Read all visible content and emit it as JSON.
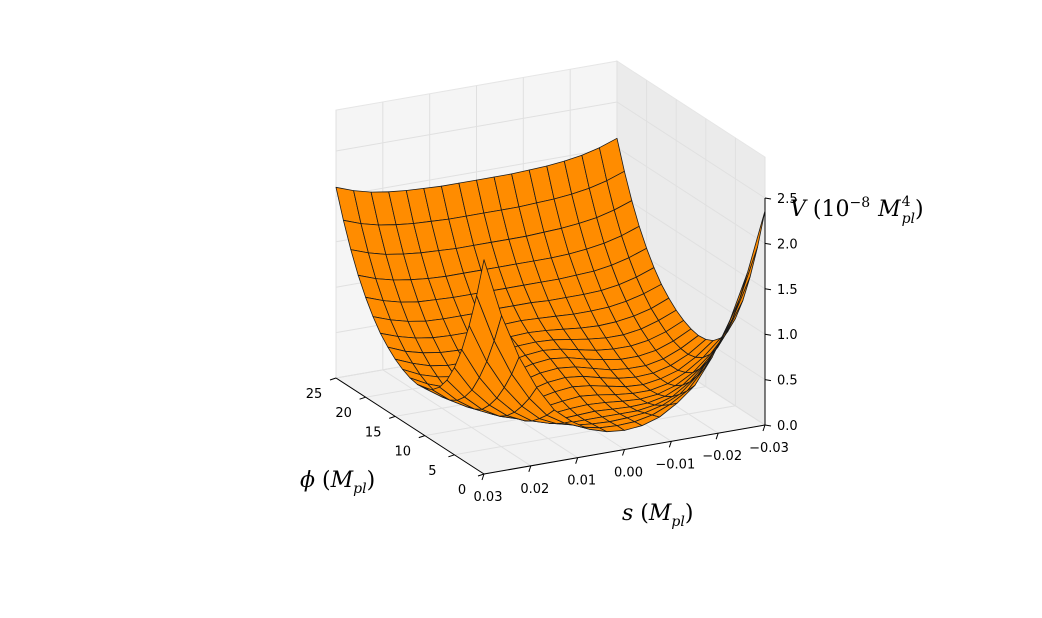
{
  "chart_data": {
    "type": "surface",
    "title": "",
    "surface_color": "#ff8c00",
    "x_axis": {
      "label": "ϕ (M_pl)",
      "label_main": "ϕ",
      "label_unit": "M",
      "label_sub": "pl",
      "range": [
        0,
        25
      ],
      "ticks": [
        "0",
        "5",
        "10",
        "15",
        "20",
        "25"
      ]
    },
    "y_axis": {
      "label": "s (M_pl)",
      "label_main": "s",
      "label_unit": "M",
      "label_sub": "pl",
      "range": [
        -0.03,
        0.03
      ],
      "ticks": [
        "0.03",
        "0.02",
        "0.01",
        "0.00",
        "−0.01",
        "−0.02",
        "−0.03"
      ]
    },
    "z_axis": {
      "label": "V (10^-8 M_pl^4)",
      "label_main": "V",
      "label_ten": "10",
      "label_exp": "−8",
      "label_unit": "M",
      "label_sup": "4",
      "label_sub": "pl",
      "range": [
        0,
        2.5
      ],
      "ticks": [
        "0.0",
        "0.5",
        "1.0",
        "1.5",
        "2.0",
        "2.5"
      ]
    },
    "grid": true,
    "phi_samples": [
      0,
      1.25,
      2.5,
      3.75,
      5,
      6.25,
      7.5,
      8.75,
      10,
      11.25,
      12.5,
      13.75,
      15,
      16.25,
      17.5,
      18.75,
      20,
      21.25,
      22.5,
      23.75,
      25
    ],
    "s_samples": [
      0.03,
      0.02625,
      0.0225,
      0.01875,
      0.015,
      0.01125,
      0.0075,
      0.00375,
      0,
      -0.00375,
      -0.0075,
      -0.01125,
      -0.015,
      -0.01875,
      -0.0225,
      -0.02625,
      -0.03
    ],
    "V_values": [
      [
        2.36,
        1.71,
        1.22,
        0.85,
        0.57,
        0.41,
        0.29,
        0.23,
        0.21,
        0.23,
        0.29,
        0.41,
        0.57,
        0.85,
        1.22,
        1.71,
        2.36
      ],
      [
        1.91,
        1.38,
        0.98,
        0.68,
        0.46,
        0.34,
        0.26,
        0.22,
        0.21,
        0.22,
        0.26,
        0.34,
        0.46,
        0.68,
        0.98,
        1.38,
        1.91
      ],
      [
        1.53,
        1.1,
        0.78,
        0.54,
        0.37,
        0.28,
        0.23,
        0.21,
        0.2,
        0.21,
        0.23,
        0.28,
        0.37,
        0.54,
        0.78,
        1.1,
        1.53
      ],
      [
        1.21,
        0.87,
        0.61,
        0.42,
        0.29,
        0.23,
        0.2,
        0.2,
        0.2,
        0.2,
        0.2,
        0.23,
        0.29,
        0.42,
        0.61,
        0.87,
        1.21
      ],
      [
        0.96,
        0.68,
        0.48,
        0.33,
        0.24,
        0.2,
        0.19,
        0.2,
        0.21,
        0.2,
        0.19,
        0.2,
        0.24,
        0.33,
        0.48,
        0.68,
        0.96
      ],
      [
        0.77,
        0.55,
        0.38,
        0.27,
        0.21,
        0.19,
        0.2,
        0.22,
        0.23,
        0.22,
        0.2,
        0.19,
        0.21,
        0.27,
        0.38,
        0.55,
        0.77
      ],
      [
        0.64,
        0.46,
        0.33,
        0.24,
        0.2,
        0.2,
        0.22,
        0.25,
        0.27,
        0.25,
        0.22,
        0.2,
        0.2,
        0.24,
        0.33,
        0.46,
        0.64
      ],
      [
        0.56,
        0.41,
        0.3,
        0.24,
        0.21,
        0.22,
        0.26,
        0.3,
        0.32,
        0.3,
        0.26,
        0.22,
        0.21,
        0.24,
        0.3,
        0.41,
        0.56
      ],
      [
        0.52,
        0.39,
        0.3,
        0.25,
        0.24,
        0.26,
        0.3,
        0.35,
        0.37,
        0.35,
        0.3,
        0.26,
        0.24,
        0.25,
        0.3,
        0.39,
        0.52
      ],
      [
        0.51,
        0.4,
        0.32,
        0.28,
        0.28,
        0.3,
        0.35,
        0.4,
        0.42,
        0.4,
        0.35,
        0.3,
        0.28,
        0.28,
        0.32,
        0.4,
        0.51
      ],
      [
        0.53,
        0.43,
        0.36,
        0.33,
        0.33,
        0.36,
        0.4,
        0.45,
        0.47,
        0.45,
        0.4,
        0.36,
        0.33,
        0.33,
        0.36,
        0.43,
        0.53
      ],
      [
        0.57,
        0.48,
        0.42,
        0.39,
        0.39,
        0.41,
        0.45,
        0.49,
        0.51,
        0.49,
        0.45,
        0.41,
        0.39,
        0.39,
        0.42,
        0.48,
        0.57
      ],
      [
        0.63,
        0.55,
        0.49,
        0.46,
        0.46,
        0.48,
        0.51,
        0.54,
        0.55,
        0.54,
        0.51,
        0.48,
        0.46,
        0.46,
        0.49,
        0.55,
        0.63
      ],
      [
        0.71,
        0.63,
        0.58,
        0.55,
        0.54,
        0.55,
        0.57,
        0.59,
        0.6,
        0.59,
        0.57,
        0.55,
        0.54,
        0.55,
        0.58,
        0.63,
        0.71
      ],
      [
        0.81,
        0.74,
        0.69,
        0.66,
        0.65,
        0.65,
        0.66,
        0.67,
        0.68,
        0.67,
        0.66,
        0.65,
        0.65,
        0.66,
        0.69,
        0.74,
        0.81
      ],
      [
        0.94,
        0.87,
        0.82,
        0.79,
        0.78,
        0.78,
        0.78,
        0.79,
        0.79,
        0.79,
        0.78,
        0.78,
        0.78,
        0.79,
        0.82,
        0.87,
        0.94
      ],
      [
        1.1,
        1.03,
        0.98,
        0.95,
        0.94,
        0.93,
        0.93,
        0.93,
        0.93,
        0.93,
        0.93,
        0.93,
        0.94,
        0.95,
        0.98,
        1.03,
        1.1
      ],
      [
        1.29,
        1.22,
        1.17,
        1.14,
        1.12,
        1.11,
        1.11,
        1.11,
        1.11,
        1.11,
        1.11,
        1.11,
        1.12,
        1.14,
        1.17,
        1.22,
        1.29
      ],
      [
        1.52,
        1.45,
        1.4,
        1.37,
        1.35,
        1.34,
        1.33,
        1.33,
        1.33,
        1.33,
        1.33,
        1.34,
        1.35,
        1.37,
        1.4,
        1.45,
        1.52
      ],
      [
        1.79,
        1.72,
        1.67,
        1.64,
        1.62,
        1.61,
        1.6,
        1.6,
        1.6,
        1.6,
        1.6,
        1.61,
        1.62,
        1.64,
        1.67,
        1.72,
        1.79
      ],
      [
        2.1,
        2.03,
        1.98,
        1.95,
        1.93,
        1.92,
        1.91,
        1.91,
        1.91,
        1.91,
        1.91,
        1.92,
        1.93,
        1.95,
        1.98,
        2.03,
        2.1
      ]
    ]
  }
}
